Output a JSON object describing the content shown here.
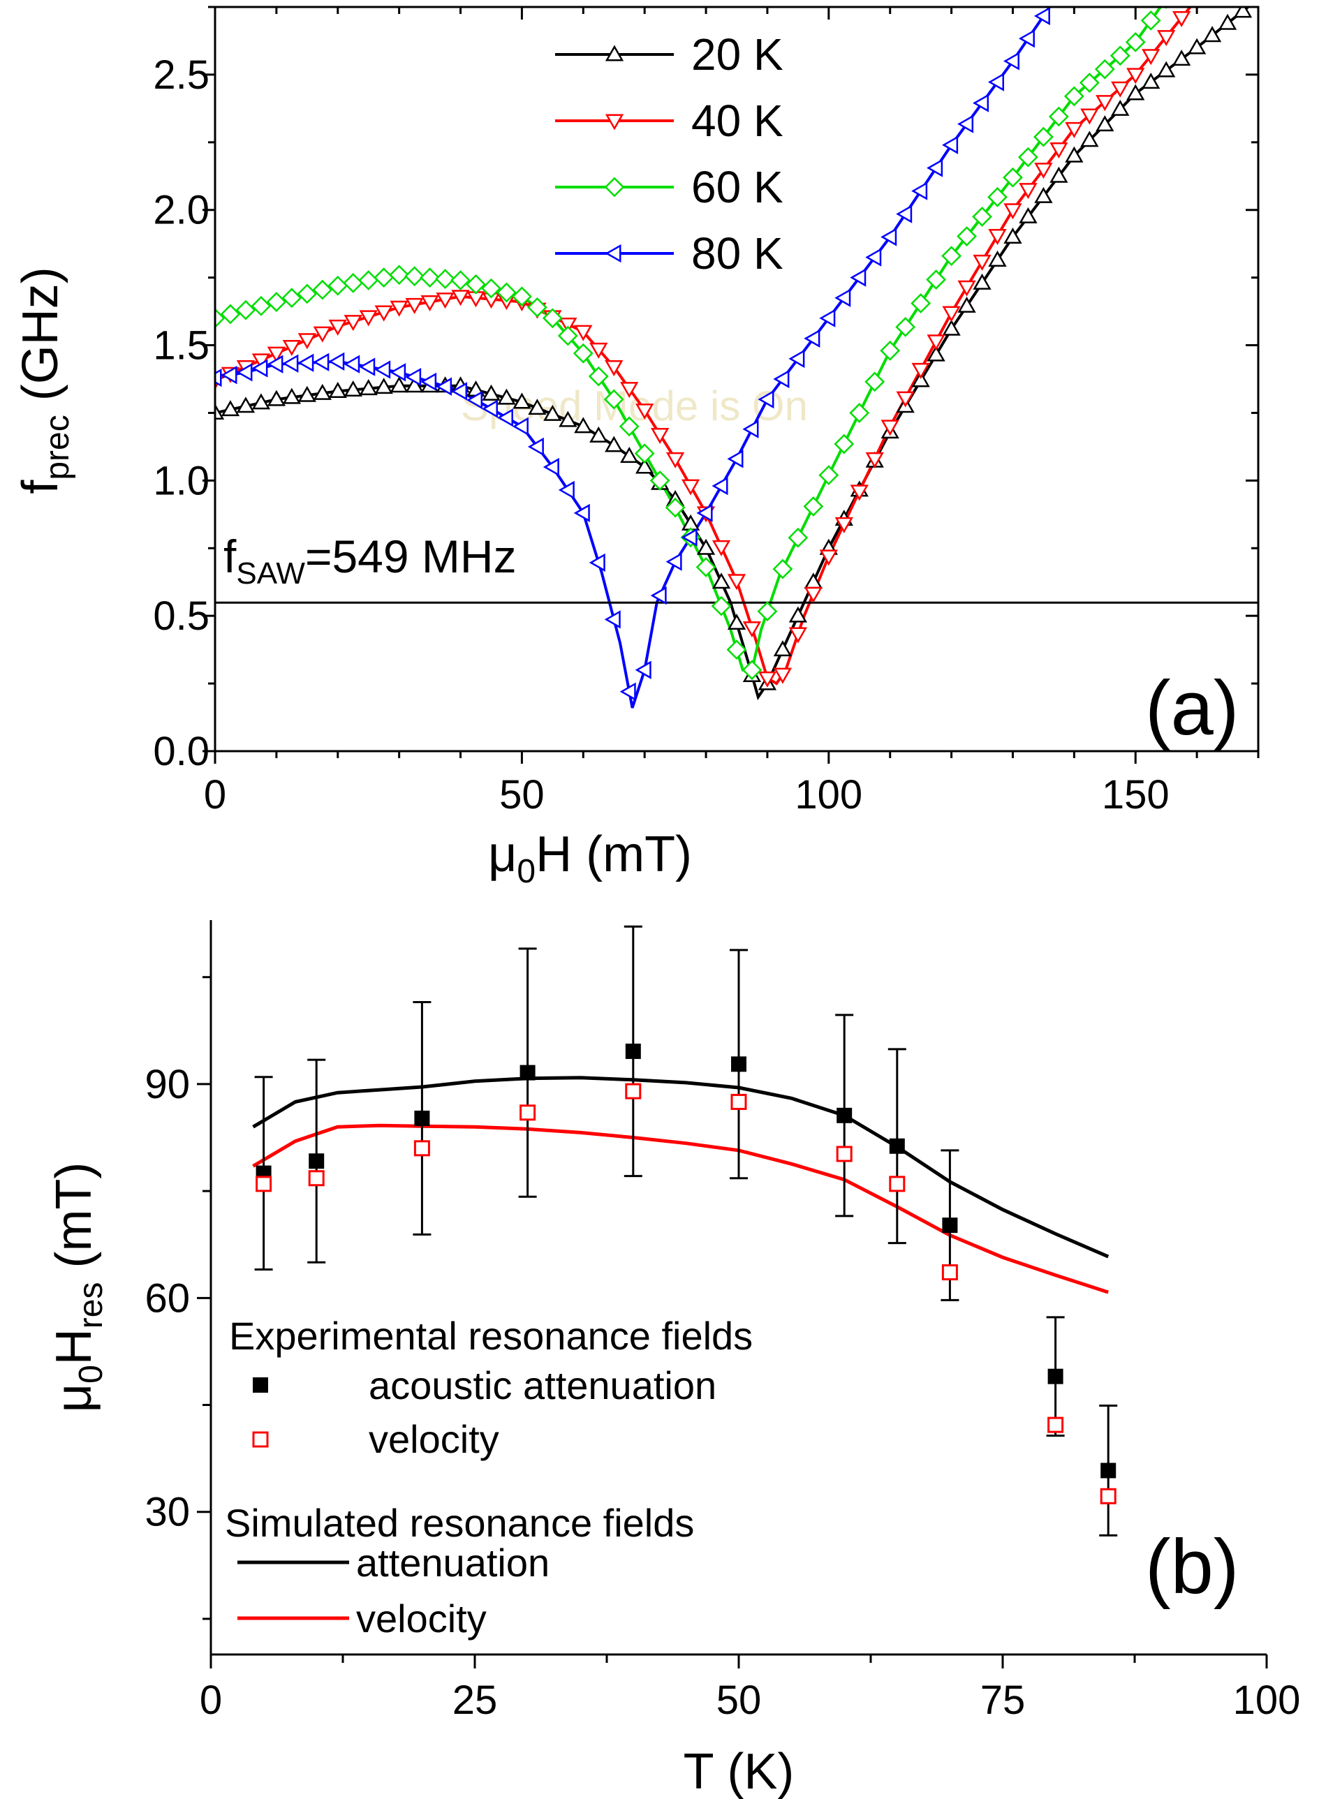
{
  "watermark": "Speed Mode is On",
  "chart_data": [
    {
      "panel": "(a)",
      "type": "line",
      "xlabel": "μ0H (mT)",
      "xlabel_main": "μ",
      "xlabel_sub": "0",
      "xlabel_rest": "H (mT)",
      "ylabel": "fprec (GHz)",
      "ylabel_main": "f",
      "ylabel_sub": "prec",
      "ylabel_rest": " (GHz)",
      "xlim": [
        0,
        170
      ],
      "ylim": [
        0,
        2.75
      ],
      "xticks": [
        0,
        50,
        100,
        150
      ],
      "xtick_labels": [
        "0",
        "50",
        "100",
        "150"
      ],
      "yticks": [
        0,
        0.5,
        1,
        1.5,
        2,
        2.5
      ],
      "ytick_labels": [
        "0.0",
        "0.5",
        "1.0",
        "1.5",
        "2.0",
        "2.5"
      ],
      "annotation": {
        "main": "f",
        "sub": "SAW",
        "rest": "=549 MHz",
        "text": "fSAW=549 MHz",
        "value_GHz": 0.549
      },
      "series": [
        {
          "name": "20 K",
          "label": "20 K",
          "color": "#000000",
          "marker": "triangle-up",
          "points": [
            [
              0,
              1.25
            ],
            [
              10,
              1.3
            ],
            [
              20,
              1.33
            ],
            [
              30,
              1.35
            ],
            [
              40,
              1.35
            ],
            [
              50,
              1.29
            ],
            [
              60,
              1.2
            ],
            [
              65,
              1.13
            ],
            [
              70,
              1.05
            ],
            [
              75,
              0.93
            ],
            [
              80,
              0.75
            ],
            [
              84,
              0.55
            ],
            [
              87,
              0.32
            ],
            [
              88.5,
              0.2
            ],
            [
              90,
              0.25
            ],
            [
              92,
              0.35
            ],
            [
              95,
              0.5
            ],
            [
              100,
              0.75
            ],
            [
              110,
              1.18
            ],
            [
              120,
              1.56
            ],
            [
              130,
              1.9
            ],
            [
              140,
              2.2
            ],
            [
              150,
              2.43
            ],
            [
              160,
              2.6
            ],
            [
              170,
              2.78
            ]
          ]
        },
        {
          "name": "40 K",
          "label": "40 K",
          "color": "#ff0000",
          "marker": "triangle-down",
          "points": [
            [
              0,
              1.37
            ],
            [
              10,
              1.47
            ],
            [
              20,
              1.57
            ],
            [
              30,
              1.64
            ],
            [
              40,
              1.68
            ],
            [
              50,
              1.66
            ],
            [
              60,
              1.55
            ],
            [
              65,
              1.42
            ],
            [
              70,
              1.26
            ],
            [
              75,
              1.08
            ],
            [
              80,
              0.88
            ],
            [
              85,
              0.63
            ],
            [
              88,
              0.42
            ],
            [
              90,
              0.27
            ],
            [
              91.5,
              0.25
            ],
            [
              93,
              0.3
            ],
            [
              96,
              0.5
            ],
            [
              100,
              0.72
            ],
            [
              110,
              1.2
            ],
            [
              120,
              1.62
            ],
            [
              130,
              2.0
            ],
            [
              140,
              2.3
            ],
            [
              150,
              2.5
            ],
            [
              160,
              2.78
            ]
          ]
        },
        {
          "name": "60 K",
          "label": "60 K",
          "color": "#00dd00",
          "marker": "diamond",
          "points": [
            [
              0,
              1.6
            ],
            [
              10,
              1.66
            ],
            [
              20,
              1.72
            ],
            [
              30,
              1.76
            ],
            [
              40,
              1.74
            ],
            [
              50,
              1.68
            ],
            [
              55,
              1.6
            ],
            [
              60,
              1.47
            ],
            [
              65,
              1.3
            ],
            [
              70,
              1.1
            ],
            [
              75,
              0.9
            ],
            [
              80,
              0.68
            ],
            [
              84,
              0.45
            ],
            [
              86,
              0.3
            ],
            [
              87.5,
              0.3
            ],
            [
              89,
              0.45
            ],
            [
              92,
              0.65
            ],
            [
              100,
              1.02
            ],
            [
              110,
              1.48
            ],
            [
              120,
              1.83
            ],
            [
              130,
              2.12
            ],
            [
              140,
              2.42
            ],
            [
              150,
              2.62
            ],
            [
              155,
              2.78
            ]
          ]
        },
        {
          "name": "80 K",
          "label": "80 K",
          "color": "#0000ff",
          "marker": "triangle-left",
          "points": [
            [
              0,
              1.38
            ],
            [
              5,
              1.4
            ],
            [
              10,
              1.43
            ],
            [
              20,
              1.44
            ],
            [
              30,
              1.4
            ],
            [
              40,
              1.33
            ],
            [
              50,
              1.2
            ],
            [
              55,
              1.05
            ],
            [
              60,
              0.88
            ],
            [
              63,
              0.66
            ],
            [
              66,
              0.4
            ],
            [
              68,
              0.16
            ],
            [
              70,
              0.3
            ],
            [
              72,
              0.55
            ],
            [
              75,
              0.7
            ],
            [
              80,
              0.88
            ],
            [
              85,
              1.08
            ],
            [
              90,
              1.3
            ],
            [
              100,
              1.6
            ],
            [
              110,
              1.9
            ],
            [
              120,
              2.24
            ],
            [
              130,
              2.55
            ],
            [
              136,
              2.75
            ]
          ]
        }
      ],
      "hline": 0.549
    },
    {
      "panel": "(b)",
      "type": "scatter",
      "xlabel": "T (K)",
      "ylabel": "μ0Hres (mT)",
      "ylabel_main": "μ",
      "ylabel_sub0": "0",
      "ylabel_mid": "H",
      "ylabel_sub1": "res",
      "ylabel_rest": " (mT)",
      "xlim": [
        0,
        100
      ],
      "ylim": [
        10,
        113
      ],
      "xticks": [
        0,
        25,
        50,
        75,
        100
      ],
      "xtick_labels": [
        "0",
        "25",
        "50",
        "75",
        "100"
      ],
      "yticks": [
        30,
        60,
        90
      ],
      "ytick_labels": [
        "30",
        "60",
        "90"
      ],
      "legend": {
        "experimental_title": "Experimental resonance fields",
        "attenuation_label": "acoustic attenuation",
        "velocity_label": "velocity",
        "simulated_title": "Simulated resonance fields",
        "sim_attenuation_label": "attenuation",
        "sim_velocity_label": "velocity"
      },
      "series": [
        {
          "name": "acoustic attenuation",
          "color": "#000000",
          "marker": "filled-square",
          "points": [
            [
              5,
              77.5,
              13.5
            ],
            [
              10,
              79.2,
              14.2
            ],
            [
              20,
              85.2,
              16.3
            ],
            [
              30,
              91.6,
              17.4
            ],
            [
              40,
              94.6,
              17.5
            ],
            [
              50,
              92.8,
              16
            ],
            [
              60,
              85.6,
              14.1
            ],
            [
              65,
              81.3,
              13.6
            ],
            [
              70,
              70.2,
              10.5
            ],
            [
              80,
              49,
              8.3
            ],
            [
              85,
              35.8,
              9.1
            ]
          ]
        },
        {
          "name": "velocity",
          "color": "#ff0000",
          "marker": "open-square",
          "points": [
            [
              5,
              76
            ],
            [
              10,
              76.8
            ],
            [
              20,
              81
            ],
            [
              30,
              86
            ],
            [
              40,
              89
            ],
            [
              50,
              87.5
            ],
            [
              60,
              80.2
            ],
            [
              65,
              76
            ],
            [
              70,
              63.6
            ],
            [
              80,
              42.2
            ],
            [
              85,
              32.2
            ]
          ]
        },
        {
          "name": "attenuation (simulated)",
          "color": "#000000",
          "line": true,
          "points": [
            [
              4,
              84
            ],
            [
              8,
              87.5
            ],
            [
              12,
              88.8
            ],
            [
              16,
              89.2
            ],
            [
              20,
              89.6
            ],
            [
              25,
              90.4
            ],
            [
              30,
              90.8
            ],
            [
              35,
              90.9
            ],
            [
              40,
              90.6
            ],
            [
              45,
              90.2
            ],
            [
              50,
              89.5
            ],
            [
              55,
              88
            ],
            [
              60,
              85.6
            ],
            [
              65,
              81.2
            ],
            [
              70,
              76.3
            ],
            [
              75,
              72.4
            ],
            [
              80,
              69
            ],
            [
              85,
              65.8
            ]
          ]
        },
        {
          "name": "velocity (simulated)",
          "color": "#ff0000",
          "line": true,
          "points": [
            [
              4,
              78.5
            ],
            [
              8,
              82
            ],
            [
              12,
              84
            ],
            [
              16,
              84.2
            ],
            [
              20,
              84.1
            ],
            [
              25,
              84
            ],
            [
              30,
              83.7
            ],
            [
              35,
              83.2
            ],
            [
              40,
              82.5
            ],
            [
              45,
              81.7
            ],
            [
              50,
              80.7
            ],
            [
              55,
              78.8
            ],
            [
              60,
              76.6
            ],
            [
              65,
              72.8
            ],
            [
              70,
              68.8
            ],
            [
              75,
              65.7
            ],
            [
              80,
              63.2
            ],
            [
              85,
              60.8
            ]
          ]
        }
      ]
    }
  ]
}
